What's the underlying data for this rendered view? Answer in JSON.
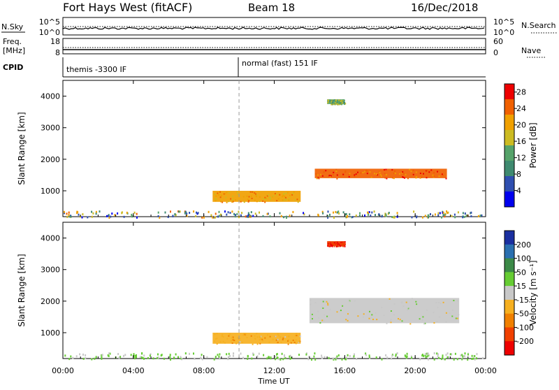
{
  "header": {
    "station": "Fort Hays West (fitACF)",
    "beam": "Beam 18",
    "date": "16/Dec/2018"
  },
  "noise_panel": {
    "left_label": "N.Sky",
    "right_label": "N.Search",
    "left_ticks": [
      "10^5",
      "10^0"
    ],
    "right_ticks": [
      "10^5",
      "10^0"
    ]
  },
  "freq_panel": {
    "left_label_1": "Freq.",
    "left_label_2": "[MHz]",
    "left_ticks": [
      "18",
      "8"
    ],
    "right_label": "Nave",
    "right_ticks": [
      "60",
      "0"
    ]
  },
  "cpid_panel": {
    "label": "CPID",
    "modes": [
      {
        "name": "themis -3300 IF",
        "start": "00:00"
      },
      {
        "name": "normal (fast) 151 IF",
        "start": "10:00"
      }
    ]
  },
  "chart_data": [
    {
      "type": "heatmap",
      "title": "",
      "xlabel": "Time UT",
      "ylabel": "Slant Range [km]",
      "xlim": [
        0,
        24
      ],
      "ylim": [
        180,
        4500
      ],
      "x_ticks": [
        "00:00",
        "04:00",
        "08:00",
        "12:00",
        "16:00",
        "20:00",
        "00:00"
      ],
      "y_ticks": [
        1000,
        2000,
        3000,
        4000
      ],
      "colorbar": {
        "label": "Power [dB]",
        "ticks": [
          4,
          8,
          12,
          16,
          20,
          24,
          28
        ],
        "range": [
          0,
          30
        ],
        "colors": [
          "#0000ee",
          "#2f4fb0",
          "#3f8a70",
          "#56a36a",
          "#ccbb22",
          "#f0a000",
          "#f06000",
          "#ee0000"
        ]
      },
      "echo_regions": [
        {
          "t_start": 8.5,
          "t_end": 13.5,
          "r_start": 650,
          "r_end": 1000,
          "value": 20
        },
        {
          "t_start": 14.3,
          "t_end": 21.8,
          "r_start": 1400,
          "r_end": 1700,
          "value": 24
        },
        {
          "t_start": 15.0,
          "t_end": 16.0,
          "r_start": 3750,
          "r_end": 3900,
          "value": 14
        }
      ]
    },
    {
      "type": "heatmap",
      "title": "",
      "xlabel": "Time UT",
      "ylabel": "Slant Range [km]",
      "xlim": [
        0,
        24
      ],
      "ylim": [
        180,
        4500
      ],
      "x_ticks": [
        "00:00",
        "04:00",
        "08:00",
        "12:00",
        "16:00",
        "20:00",
        "00:00"
      ],
      "y_ticks": [
        1000,
        2000,
        3000,
        4000
      ],
      "colorbar": {
        "label": "Velocity [m s⁻¹]",
        "ticks": [
          200,
          100,
          50,
          15,
          -15,
          -50,
          -100,
          -200
        ],
        "colors": [
          "#1a2fa0",
          "#2a6fb0",
          "#3c8a48",
          "#66cc33",
          "#c8c8c8",
          "#f6b020",
          "#f08000",
          "#f04000",
          "#ee0000"
        ]
      },
      "echo_regions": [
        {
          "t_start": 8.5,
          "t_end": 13.5,
          "r_start": 650,
          "r_end": 1000,
          "value": -40
        },
        {
          "t_start": 14.0,
          "t_end": 22.5,
          "r_start": 1300,
          "r_end": 2100,
          "value": 0
        },
        {
          "t_start": 15.0,
          "t_end": 16.0,
          "r_start": 3750,
          "r_end": 3900,
          "value": -200
        }
      ]
    }
  ]
}
